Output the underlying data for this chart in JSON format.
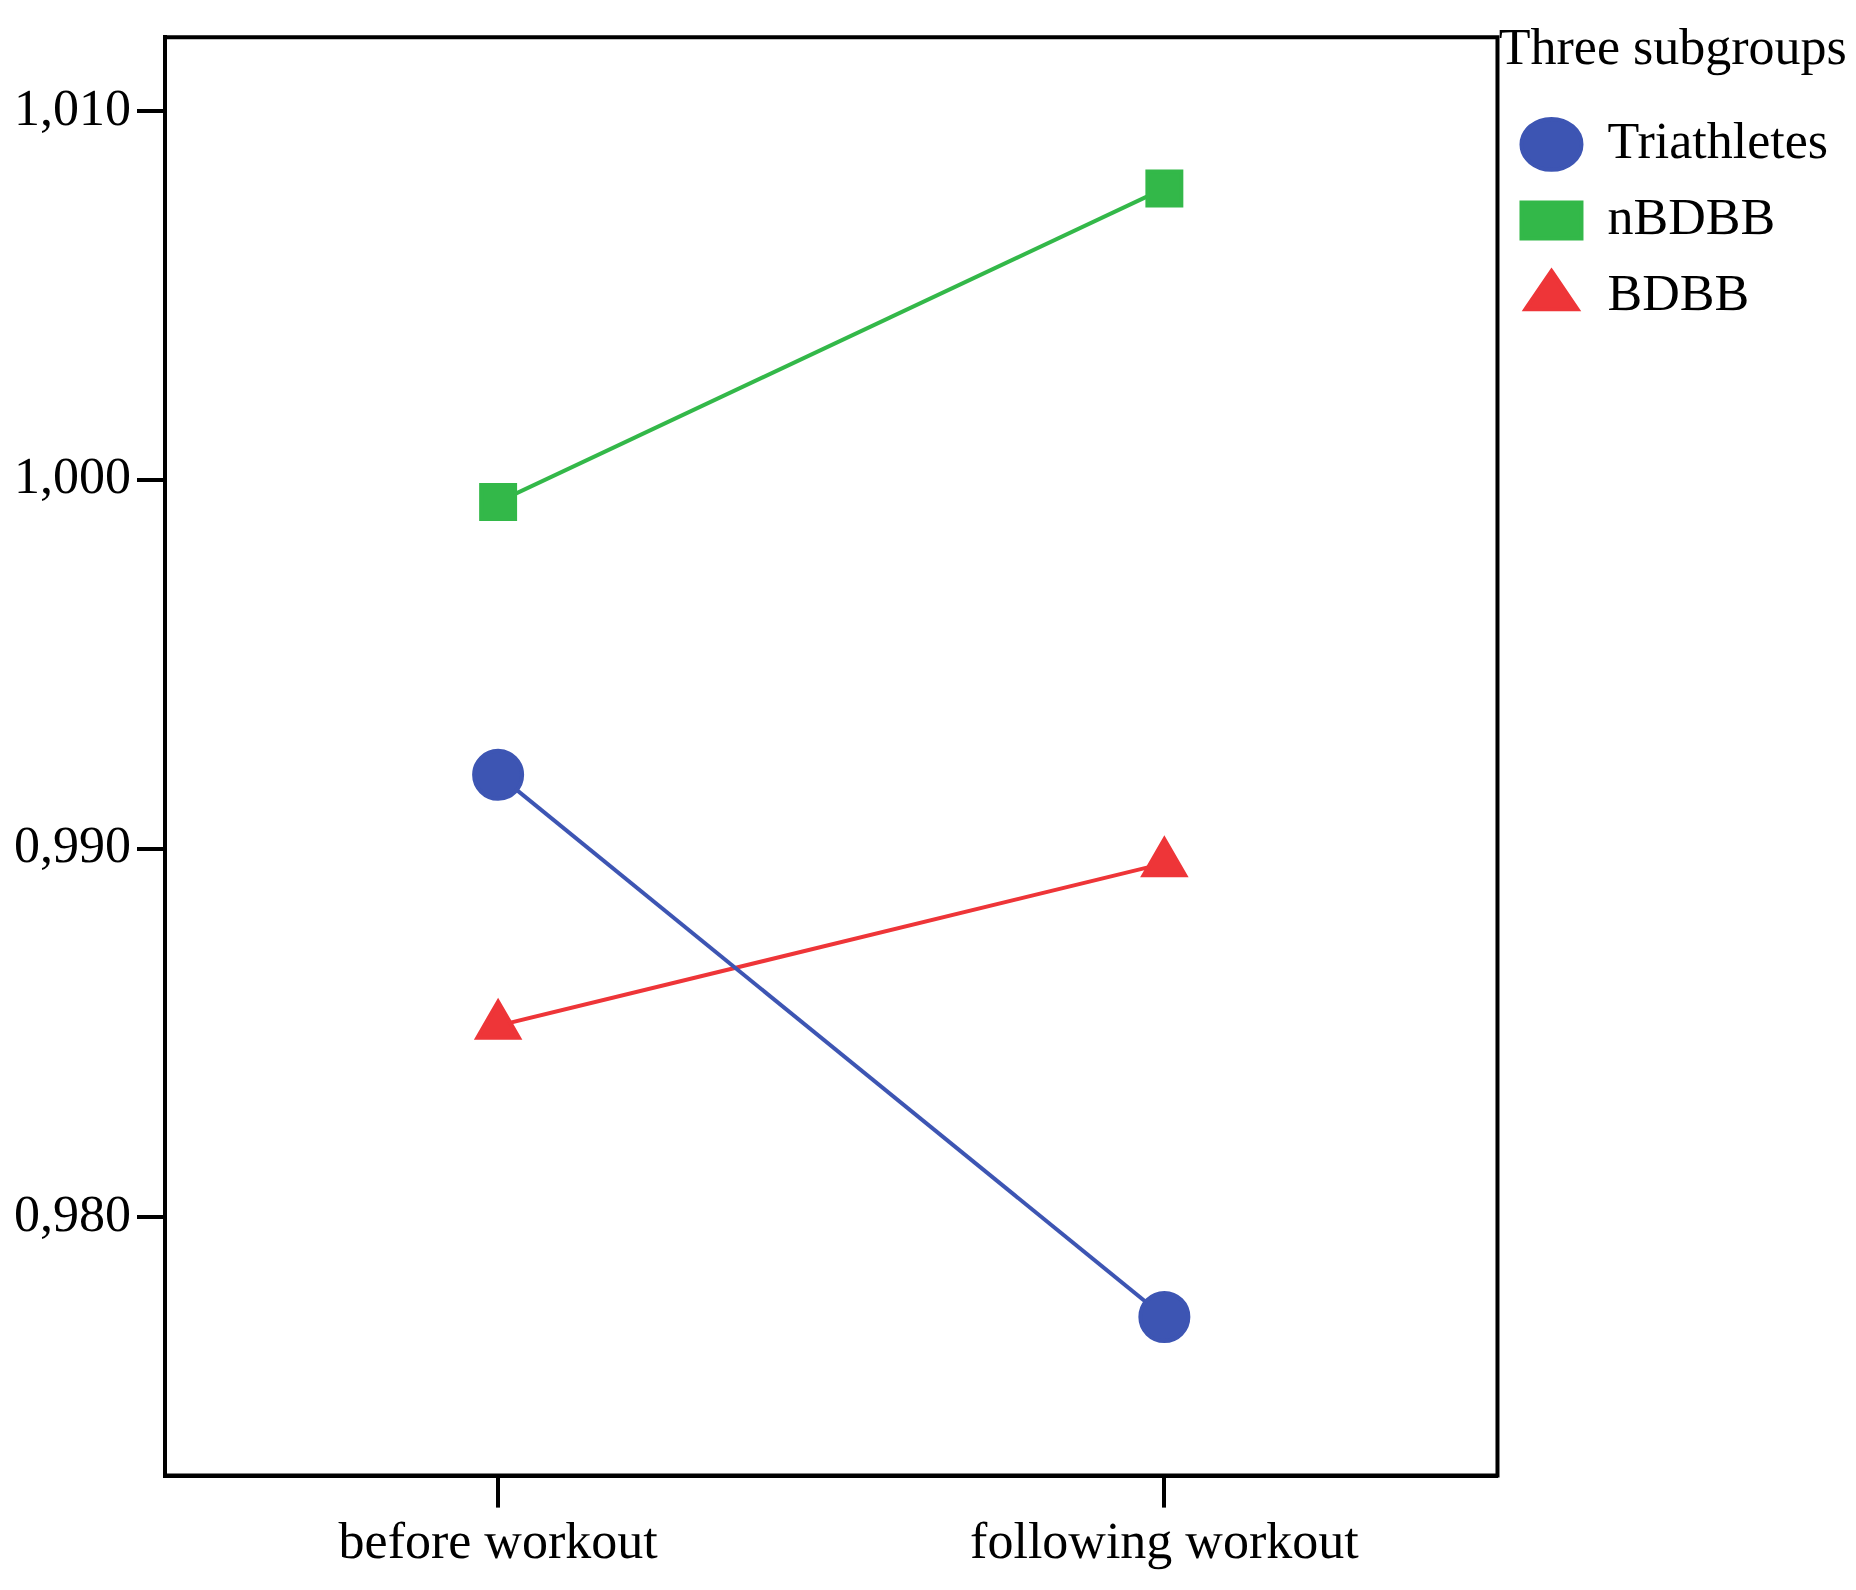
{
  "chart_data": {
    "type": "line",
    "categories": [
      "before workout",
      "following workout"
    ],
    "series": [
      {
        "name": "Triathletes",
        "color": "#3d55b3",
        "marker": "circle",
        "values": [
          0.992,
          0.9773
        ]
      },
      {
        "name": "nBDBB",
        "color": "#33b849",
        "marker": "square",
        "values": [
          0.9994,
          1.0079
        ]
      },
      {
        "name": "BDBB",
        "color": "#ee3538",
        "marker": "triangle",
        "values": [
          0.9852,
          0.9896
        ]
      }
    ],
    "legend_title": "Three subgroups",
    "legend": "top right",
    "grid": false,
    "ylim": [
      0.973,
      1.012
    ],
    "yticks": [
      {
        "value": 0.98,
        "label": "0,980"
      },
      {
        "value": 0.99,
        "label": "0,990"
      },
      {
        "value": 1.0,
        "label": "1,000"
      },
      {
        "value": 1.01,
        "label": "1,010"
      }
    ]
  }
}
